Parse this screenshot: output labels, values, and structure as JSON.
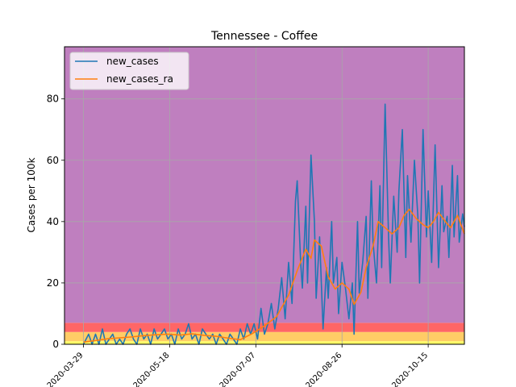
{
  "chart_data": {
    "type": "line",
    "title": "Tennessee - Coffee",
    "xlabel": "",
    "ylabel": "Cases per 100k",
    "x_range": [
      "2020-03-18",
      "2020-11-05"
    ],
    "ylim": [
      0,
      97
    ],
    "grid": true,
    "legend_position": "top-left",
    "x_ticks": [
      "2020-03-29",
      "2020-05-18",
      "2020-07-07",
      "2020-08-26",
      "2020-10-15"
    ],
    "y_ticks": [
      0,
      20,
      40,
      60,
      80
    ],
    "bands": [
      {
        "from": 0,
        "to": 1,
        "color": "#ffff66"
      },
      {
        "from": 1,
        "to": 4,
        "color": "#ffcc66"
      },
      {
        "from": 4,
        "to": 7,
        "color": "#ff6666"
      },
      {
        "from": 7,
        "to": 97,
        "color": "#bf7fbf"
      }
    ],
    "series": [
      {
        "name": "new_cases",
        "color": "#1f77b4",
        "points": [
          [
            "2020-03-29",
            0
          ],
          [
            "2020-04-01",
            3.3
          ],
          [
            "2020-04-03",
            0
          ],
          [
            "2020-04-05",
            3.3
          ],
          [
            "2020-04-07",
            0
          ],
          [
            "2020-04-09",
            5
          ],
          [
            "2020-04-11",
            0
          ],
          [
            "2020-04-13",
            1.7
          ],
          [
            "2020-04-15",
            3.3
          ],
          [
            "2020-04-17",
            0
          ],
          [
            "2020-04-19",
            1.7
          ],
          [
            "2020-04-21",
            0
          ],
          [
            "2020-04-23",
            3.3
          ],
          [
            "2020-04-25",
            5
          ],
          [
            "2020-04-27",
            1.7
          ],
          [
            "2020-04-29",
            0
          ],
          [
            "2020-05-01",
            5
          ],
          [
            "2020-05-03",
            1.7
          ],
          [
            "2020-05-05",
            3.3
          ],
          [
            "2020-05-07",
            0
          ],
          [
            "2020-05-09",
            5
          ],
          [
            "2020-05-11",
            1.7
          ],
          [
            "2020-05-13",
            3.3
          ],
          [
            "2020-05-15",
            5
          ],
          [
            "2020-05-17",
            1.7
          ],
          [
            "2020-05-19",
            3.3
          ],
          [
            "2020-05-21",
            0
          ],
          [
            "2020-05-23",
            5
          ],
          [
            "2020-05-25",
            1.7
          ],
          [
            "2020-05-27",
            3.3
          ],
          [
            "2020-05-29",
            6.7
          ],
          [
            "2020-05-31",
            1.7
          ],
          [
            "2020-06-02",
            3.3
          ],
          [
            "2020-06-04",
            0
          ],
          [
            "2020-06-06",
            5
          ],
          [
            "2020-06-08",
            3.3
          ],
          [
            "2020-06-10",
            1.7
          ],
          [
            "2020-06-12",
            3.3
          ],
          [
            "2020-06-14",
            0
          ],
          [
            "2020-06-16",
            3.3
          ],
          [
            "2020-06-18",
            1.7
          ],
          [
            "2020-06-20",
            0
          ],
          [
            "2020-06-22",
            3.3
          ],
          [
            "2020-06-24",
            1.7
          ],
          [
            "2020-06-26",
            0
          ],
          [
            "2020-06-28",
            5
          ],
          [
            "2020-06-30",
            1.7
          ],
          [
            "2020-07-02",
            6.7
          ],
          [
            "2020-07-04",
            3.3
          ],
          [
            "2020-07-06",
            6.7
          ],
          [
            "2020-07-08",
            1.7
          ],
          [
            "2020-07-10",
            11.7
          ],
          [
            "2020-07-12",
            3.3
          ],
          [
            "2020-07-14",
            6.7
          ],
          [
            "2020-07-16",
            13.3
          ],
          [
            "2020-07-18",
            5
          ],
          [
            "2020-07-20",
            11.7
          ],
          [
            "2020-07-22",
            21.7
          ],
          [
            "2020-07-24",
            8.3
          ],
          [
            "2020-07-26",
            26.7
          ],
          [
            "2020-07-28",
            13.3
          ],
          [
            "2020-07-30",
            46.7
          ],
          [
            "2020-07-31",
            53.3
          ],
          [
            "2020-08-02",
            26.7
          ],
          [
            "2020-08-03",
            18.3
          ],
          [
            "2020-08-05",
            45
          ],
          [
            "2020-08-06",
            20
          ],
          [
            "2020-08-08",
            61.7
          ],
          [
            "2020-08-10",
            40
          ],
          [
            "2020-08-11",
            15
          ],
          [
            "2020-08-13",
            35
          ],
          [
            "2020-08-15",
            5
          ],
          [
            "2020-08-17",
            25
          ],
          [
            "2020-08-18",
            15
          ],
          [
            "2020-08-20",
            40
          ],
          [
            "2020-08-21",
            20
          ],
          [
            "2020-08-23",
            28.3
          ],
          [
            "2020-08-24",
            10
          ],
          [
            "2020-08-26",
            26.7
          ],
          [
            "2020-08-28",
            18.3
          ],
          [
            "2020-08-30",
            8.3
          ],
          [
            "2020-09-01",
            20
          ],
          [
            "2020-09-02",
            3.3
          ],
          [
            "2020-09-04",
            40
          ],
          [
            "2020-09-05",
            16.7
          ],
          [
            "2020-09-07",
            26.7
          ],
          [
            "2020-09-09",
            41.7
          ],
          [
            "2020-09-10",
            15
          ],
          [
            "2020-09-12",
            53.3
          ],
          [
            "2020-09-13",
            33.3
          ],
          [
            "2020-09-15",
            20
          ],
          [
            "2020-09-17",
            51.7
          ],
          [
            "2020-09-18",
            25
          ],
          [
            "2020-09-20",
            78.3
          ],
          [
            "2020-09-22",
            35
          ],
          [
            "2020-09-23",
            20
          ],
          [
            "2020-09-25",
            48.3
          ],
          [
            "2020-09-27",
            30
          ],
          [
            "2020-09-28",
            50
          ],
          [
            "2020-09-30",
            70
          ],
          [
            "2020-10-02",
            28.3
          ],
          [
            "2020-10-03",
            55
          ],
          [
            "2020-10-05",
            33.3
          ],
          [
            "2020-10-07",
            60
          ],
          [
            "2020-10-09",
            41.7
          ],
          [
            "2020-10-10",
            20
          ],
          [
            "2020-10-12",
            70
          ],
          [
            "2020-10-14",
            35
          ],
          [
            "2020-10-15",
            50
          ],
          [
            "2020-10-17",
            26.7
          ],
          [
            "2020-10-19",
            65
          ],
          [
            "2020-10-21",
            25
          ],
          [
            "2020-10-23",
            51.7
          ],
          [
            "2020-10-24",
            36.7
          ],
          [
            "2020-10-26",
            41.7
          ],
          [
            "2020-10-27",
            28.3
          ],
          [
            "2020-10-29",
            58.3
          ],
          [
            "2020-10-30",
            35
          ],
          [
            "2020-11-01",
            55
          ],
          [
            "2020-11-02",
            33.3
          ],
          [
            "2020-11-04",
            42.5
          ],
          [
            "2020-11-05",
            38.3
          ]
        ]
      },
      {
        "name": "new_cases_ra",
        "color": "#ff7f0e",
        "points": [
          [
            "2020-03-29",
            0.7
          ],
          [
            "2020-04-05",
            1.2
          ],
          [
            "2020-04-12",
            1.8
          ],
          [
            "2020-04-19",
            2.1
          ],
          [
            "2020-04-26",
            2.4
          ],
          [
            "2020-05-03",
            2.8
          ],
          [
            "2020-05-10",
            3.1
          ],
          [
            "2020-05-17",
            3.3
          ],
          [
            "2020-05-24",
            3.0
          ],
          [
            "2020-05-31",
            3.4
          ],
          [
            "2020-06-07",
            2.9
          ],
          [
            "2020-06-14",
            2.6
          ],
          [
            "2020-06-21",
            2.0
          ],
          [
            "2020-06-28",
            1.5
          ],
          [
            "2020-07-05",
            3.5
          ],
          [
            "2020-07-12",
            6.0
          ],
          [
            "2020-07-19",
            9.0
          ],
          [
            "2020-07-26",
            16.0
          ],
          [
            "2020-07-31",
            24.0
          ],
          [
            "2020-08-05",
            31.0
          ],
          [
            "2020-08-08",
            28.0
          ],
          [
            "2020-08-10",
            34.0
          ],
          [
            "2020-08-14",
            32.0
          ],
          [
            "2020-08-18",
            22.0
          ],
          [
            "2020-08-22",
            18.0
          ],
          [
            "2020-08-26",
            20.0
          ],
          [
            "2020-08-30",
            18.0
          ],
          [
            "2020-09-02",
            13.0
          ],
          [
            "2020-09-06",
            17.0
          ],
          [
            "2020-09-09",
            25.0
          ],
          [
            "2020-09-13",
            32.0
          ],
          [
            "2020-09-16",
            40.0
          ],
          [
            "2020-09-20",
            38.0
          ],
          [
            "2020-09-24",
            36.0
          ],
          [
            "2020-09-28",
            38.0
          ],
          [
            "2020-10-01",
            42.0
          ],
          [
            "2020-10-04",
            44.0
          ],
          [
            "2020-10-08",
            41.0
          ],
          [
            "2020-10-12",
            39.0
          ],
          [
            "2020-10-15",
            38.0
          ],
          [
            "2020-10-18",
            40.0
          ],
          [
            "2020-10-21",
            43.0
          ],
          [
            "2020-10-25",
            40.0
          ],
          [
            "2020-10-28",
            38.0
          ],
          [
            "2020-11-01",
            42.0
          ],
          [
            "2020-11-05",
            36.0
          ]
        ]
      }
    ]
  }
}
